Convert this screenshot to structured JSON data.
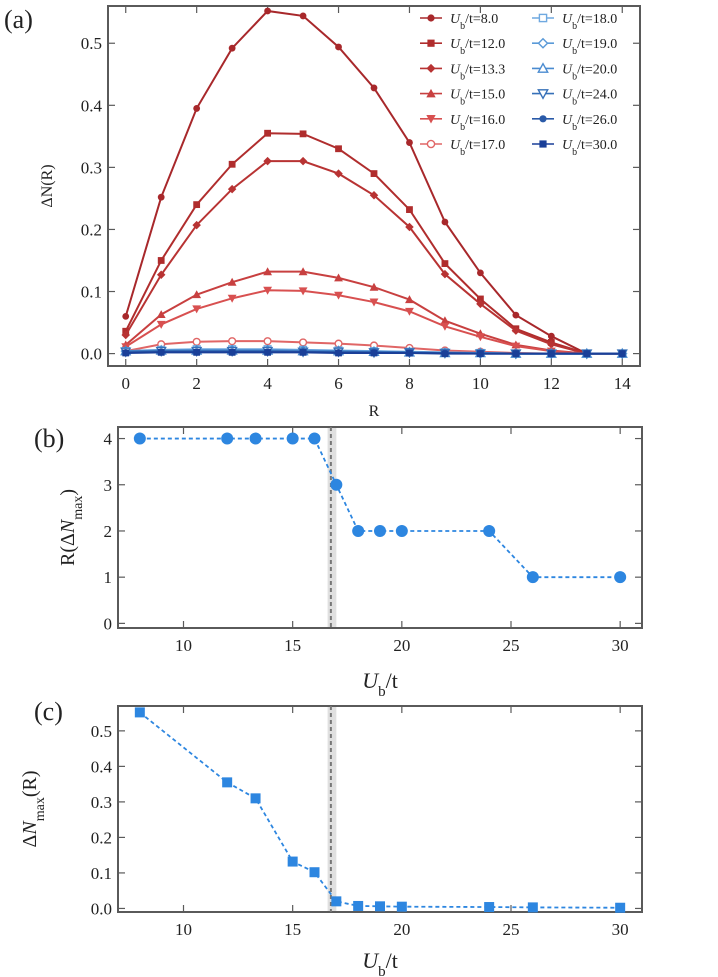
{
  "chart_data": [
    {
      "panel": "(a)",
      "type": "line",
      "xlabel": "R",
      "ylabel": "ΔN(R)",
      "xlim": [
        -0.5,
        14.5
      ],
      "ylim": [
        -0.02,
        0.56
      ],
      "xticks": [
        0,
        2,
        4,
        6,
        8,
        10,
        12,
        14
      ],
      "yticks": [
        0.0,
        0.1,
        0.2,
        0.3,
        0.4,
        0.5
      ],
      "ytick_labels": [
        "0.0",
        "0.1",
        "0.2",
        "0.3",
        "0.4",
        "0.5"
      ],
      "x": [
        0,
        1,
        2,
        3,
        4,
        5,
        6,
        7,
        8,
        9,
        10,
        11,
        12,
        13,
        14
      ],
      "series": [
        {
          "name": "U_b/t=8.0",
          "prefix": "U",
          "sub": "b",
          "suffix": "/t=8.0",
          "color": "#a8282b",
          "marker": "circle",
          "values": [
            0.06,
            0.252,
            0.395,
            0.492,
            0.552,
            0.544,
            0.494,
            0.428,
            0.34,
            0.212,
            0.13,
            0.062,
            0.028,
            0.0,
            0.0
          ]
        },
        {
          "name": "U_b/t=12.0",
          "prefix": "U",
          "sub": "b",
          "suffix": "/t=12.0",
          "color": "#b02d2d",
          "marker": "square",
          "values": [
            0.036,
            0.15,
            0.24,
            0.305,
            0.355,
            0.354,
            0.33,
            0.29,
            0.232,
            0.145,
            0.088,
            0.04,
            0.018,
            0.0,
            0.0
          ]
        },
        {
          "name": "U_b/t=13.3",
          "prefix": "U",
          "sub": "b",
          "suffix": "/t=13.3",
          "color": "#b83333",
          "marker": "diamond",
          "values": [
            0.03,
            0.127,
            0.207,
            0.265,
            0.31,
            0.31,
            0.29,
            0.255,
            0.204,
            0.128,
            0.08,
            0.037,
            0.015,
            0.0,
            0.0
          ]
        },
        {
          "name": "U_b/t=15.0",
          "prefix": "U",
          "sub": "b",
          "suffix": "/t=15.0",
          "color": "#c84040",
          "marker": "triangle-up",
          "values": [
            0.014,
            0.063,
            0.095,
            0.115,
            0.132,
            0.132,
            0.122,
            0.107,
            0.087,
            0.053,
            0.032,
            0.014,
            0.005,
            0.0,
            0.0
          ]
        },
        {
          "name": "U_b/t=16.0",
          "prefix": "U",
          "sub": "b",
          "suffix": "/t=16.0",
          "color": "#d85050",
          "marker": "triangle-down",
          "values": [
            0.011,
            0.047,
            0.072,
            0.089,
            0.102,
            0.101,
            0.094,
            0.083,
            0.068,
            0.044,
            0.027,
            0.012,
            0.004,
            0.0,
            0.0
          ]
        },
        {
          "name": "U_b/t=17.0",
          "prefix": "U",
          "sub": "b",
          "suffix": "/t=17.0",
          "color": "#e06666",
          "marker": "circle-open",
          "values": [
            0.004,
            0.015,
            0.019,
            0.02,
            0.02,
            0.018,
            0.016,
            0.013,
            0.009,
            0.005,
            0.003,
            0.001,
            0.0,
            0.0,
            0.0
          ]
        },
        {
          "name": "U_b/t=18.0",
          "prefix": "U",
          "sub": "b",
          "suffix": "/t=18.0",
          "color": "#6fa9e0",
          "marker": "square-open",
          "values": [
            0.004,
            0.006,
            0.007,
            0.007,
            0.007,
            0.006,
            0.005,
            0.004,
            0.003,
            0.002,
            0.001,
            0.0,
            0.0,
            0.0,
            0.0
          ]
        },
        {
          "name": "U_b/t=19.0",
          "prefix": "U",
          "sub": "b",
          "suffix": "/t=19.0",
          "color": "#5a9ad8",
          "marker": "diamond-open",
          "values": [
            0.004,
            0.005,
            0.006,
            0.006,
            0.006,
            0.005,
            0.004,
            0.003,
            0.002,
            0.001,
            0.001,
            0.0,
            0.0,
            0.0,
            0.0
          ]
        },
        {
          "name": "U_b/t=20.0",
          "prefix": "U",
          "sub": "b",
          "suffix": "/t=20.0",
          "color": "#4a8bd0",
          "marker": "triangle-up-open",
          "values": [
            0.004,
            0.005,
            0.005,
            0.005,
            0.005,
            0.004,
            0.004,
            0.003,
            0.002,
            0.001,
            0.001,
            0.0,
            0.0,
            0.0,
            0.0
          ]
        },
        {
          "name": "U_b/t=24.0",
          "prefix": "U",
          "sub": "b",
          "suffix": "/t=24.0",
          "color": "#3670b8",
          "marker": "triangle-down-open",
          "values": [
            0.003,
            0.004,
            0.004,
            0.004,
            0.004,
            0.003,
            0.003,
            0.002,
            0.002,
            0.001,
            0.0,
            0.0,
            0.0,
            0.0,
            0.0
          ]
        },
        {
          "name": "U_b/t=26.0",
          "prefix": "U",
          "sub": "b",
          "suffix": "/t=26.0",
          "color": "#2a5aa8",
          "marker": "circle",
          "values": [
            0.002,
            0.003,
            0.003,
            0.003,
            0.003,
            0.003,
            0.002,
            0.002,
            0.001,
            0.001,
            0.0,
            0.0,
            0.0,
            0.0,
            0.0
          ]
        },
        {
          "name": "U_b/t=30.0",
          "prefix": "U",
          "sub": "b",
          "suffix": "/t=30.0",
          "color": "#1a3f98",
          "marker": "square",
          "values": [
            0.001,
            0.002,
            0.002,
            0.002,
            0.002,
            0.002,
            0.001,
            0.001,
            0.001,
            0.0,
            0.0,
            0.0,
            0.0,
            0.0,
            0.0
          ]
        }
      ],
      "legend_position": "top-right"
    },
    {
      "panel": "(b)",
      "type": "scatter",
      "style": "dashed line with filled circles",
      "ylabel_prefix": "R(Δ",
      "ylabel_var": "N",
      "ylabel_sub": "max",
      "ylabel_suffix": ")",
      "xlabel_var": "U",
      "xlabel_sub": "b",
      "xlabel_suffix": "/t",
      "xlim": [
        7,
        31
      ],
      "ylim": [
        -0.1,
        4.25
      ],
      "xticks": [
        10,
        15,
        20,
        25,
        30
      ],
      "yticks": [
        0,
        1,
        2,
        3,
        4
      ],
      "x": [
        8,
        12,
        13.3,
        15,
        16,
        17,
        18,
        19,
        20,
        24,
        26,
        30
      ],
      "y": [
        4,
        4,
        4,
        4,
        4,
        3,
        2,
        2,
        2,
        2,
        1,
        1
      ],
      "color": "#2d86e0",
      "critical_line_x": 16.75,
      "shaded_band": [
        16.6,
        17.0
      ]
    },
    {
      "panel": "(c)",
      "type": "scatter",
      "style": "dashed line with filled squares",
      "ylabel_prefix": "Δ",
      "ylabel_var": "N",
      "ylabel_sub": "max",
      "ylabel_suffix": "(R)",
      "xlabel_var": "U",
      "xlabel_sub": "b",
      "xlabel_suffix": "/t",
      "xlim": [
        7,
        31
      ],
      "ylim": [
        -0.01,
        0.57
      ],
      "xticks": [
        10,
        15,
        20,
        25,
        30
      ],
      "yticks": [
        0.0,
        0.1,
        0.2,
        0.3,
        0.4,
        0.5
      ],
      "ytick_labels": [
        "0.0",
        "0.1",
        "0.2",
        "0.3",
        "0.4",
        "0.5"
      ],
      "x": [
        8,
        12,
        13.3,
        15,
        16,
        17,
        18,
        19,
        20,
        24,
        26,
        30
      ],
      "y": [
        0.552,
        0.355,
        0.31,
        0.132,
        0.102,
        0.02,
        0.007,
        0.006,
        0.005,
        0.004,
        0.003,
        0.002
      ],
      "color": "#2d86e0",
      "critical_line_x": 16.75,
      "shaded_band": [
        16.6,
        17.0
      ]
    }
  ]
}
